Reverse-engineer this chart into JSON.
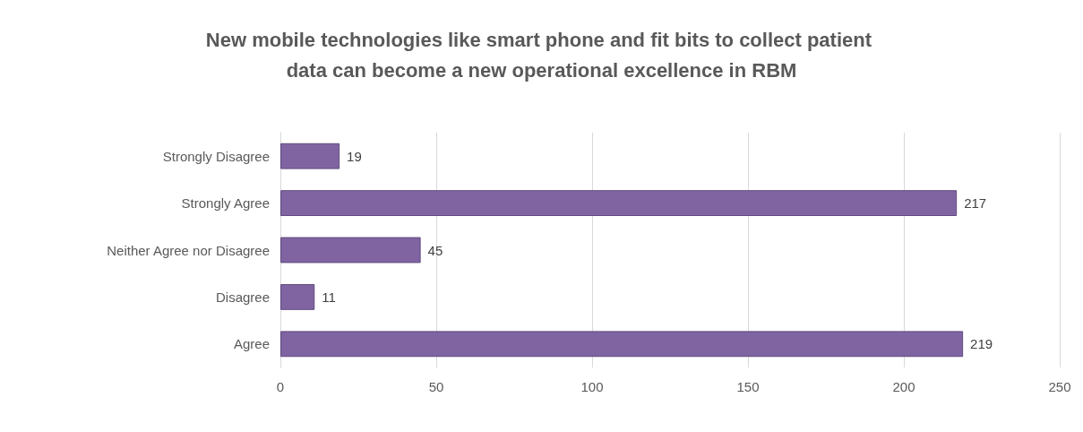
{
  "chart_data": {
    "type": "bar",
    "orientation": "horizontal",
    "title": "New mobile technologies like smart phone and fit bits to collect patient data can become a new operational excellence in RBM",
    "categories": [
      "Strongly Disagree",
      "Strongly Agree",
      "Neither Agree nor Disagree",
      "Disagree",
      "Agree"
    ],
    "values": [
      19,
      217,
      45,
      11,
      219
    ],
    "color": "#8064a2",
    "xlim": [
      0,
      250
    ],
    "xticks": [
      0,
      50,
      100,
      150,
      200,
      250
    ],
    "grid": "x",
    "data_labels": true
  }
}
